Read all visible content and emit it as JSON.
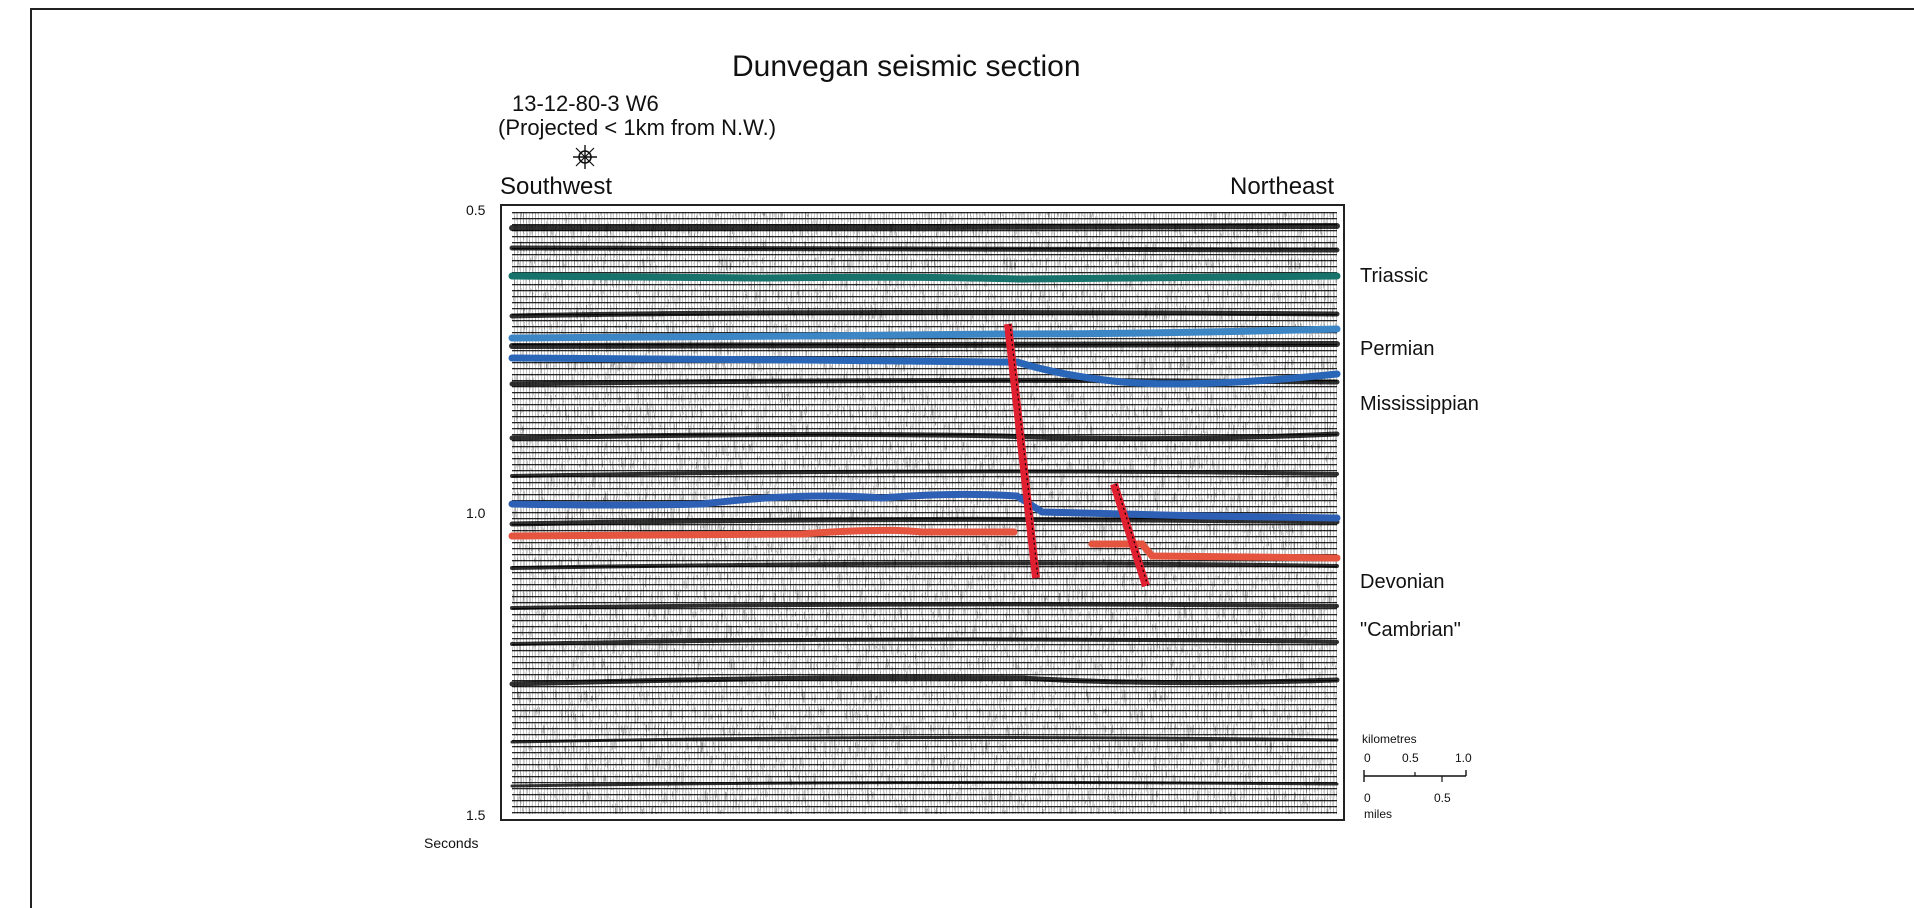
{
  "title": "Dunvegan seismic section",
  "well": {
    "name": "13-12-80-3 W6",
    "note": "(Projected < 1km from N.W.)",
    "icon": "well-symbol-icon"
  },
  "directions": {
    "left": "Southwest",
    "right": "Northeast"
  },
  "time_axis": {
    "ticks": [
      "0.5",
      "1.0",
      "1.5"
    ],
    "unit": "Seconds",
    "range": [
      0.5,
      1.5
    ]
  },
  "horizons": [
    {
      "name": "Triassic",
      "color": "#16726a"
    },
    {
      "name": "Permian",
      "color": "#3d86c6"
    },
    {
      "name": "Mississippian",
      "color": "#2a66b8"
    },
    {
      "name": "Devonian",
      "color": "#2d5fb5"
    },
    {
      "name": "\"Cambrian\"",
      "color": "#e4543f"
    }
  ],
  "faults": {
    "color": "#e02030",
    "count": 2
  },
  "scale_bar": {
    "km_title": "kilometres",
    "km_ticks": [
      "0",
      "0.5",
      "1.0"
    ],
    "mi_ticks": [
      "0",
      "0.5"
    ],
    "mi_title": "miles"
  }
}
